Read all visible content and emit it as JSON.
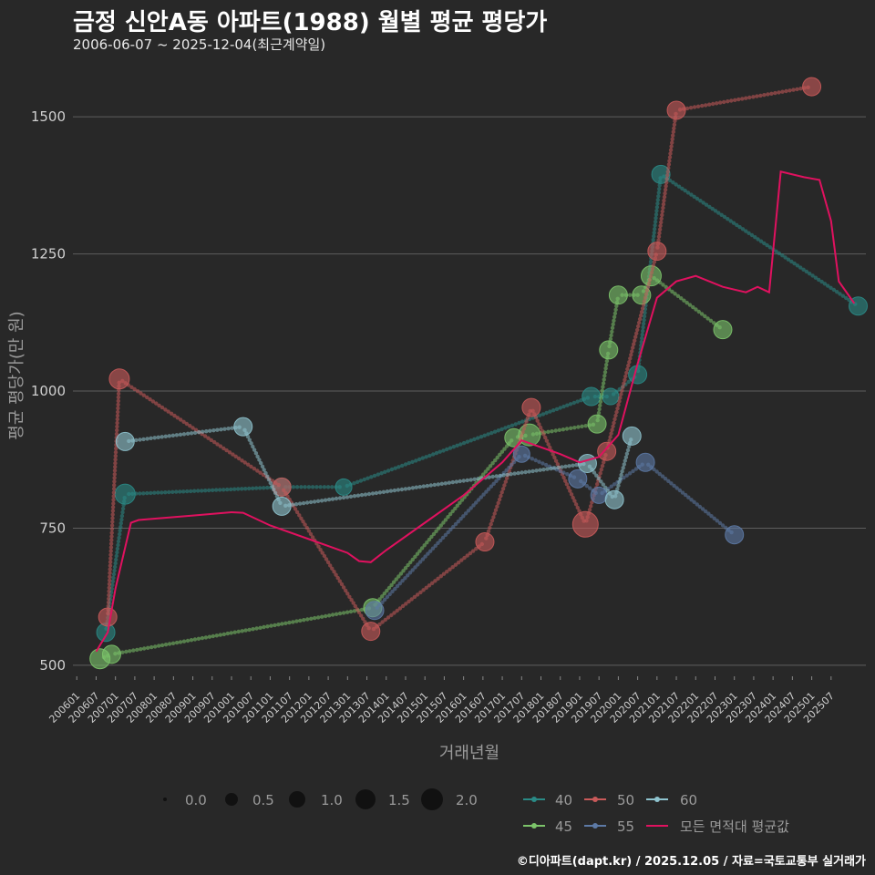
{
  "header": {
    "title": "금정 신안A동 아파트(1988) 월별 평균 평당가",
    "subtitle": "2006-06-07 ~ 2025-12-04(최근계약일)"
  },
  "footer": {
    "credit": "©디아파트(dapt.kr) / 2025.12.05 / 자료=국토교통부 실거래가"
  },
  "colors": {
    "background": "#282828",
    "grid": "#5e5e5e",
    "s40": "#2a8a86",
    "s45": "#7cc46a",
    "s50": "#c95a5a",
    "s55": "#5d7aa6",
    "s60": "#8fc4cf",
    "avg": "#e0115f"
  },
  "chart_data": {
    "type": "line",
    "title": "금정 신안A동 아파트(1988) 월별 평균 평당가",
    "xlabel": "거래년월",
    "ylabel": "평균 평당가(만 원)",
    "ylim": [
      450,
      1600
    ],
    "yticks": [
      500,
      750,
      1000,
      1250,
      1500
    ],
    "xlim": [
      2005.9,
      2026.4
    ],
    "xtick_labels": [
      "200601",
      "200607",
      "200701",
      "200707",
      "200801",
      "200807",
      "200901",
      "200907",
      "201001",
      "201007",
      "201101",
      "201107",
      "201201",
      "201207",
      "201301",
      "201307",
      "201401",
      "201407",
      "201501",
      "201507",
      "201601",
      "201607",
      "201701",
      "201707",
      "201801",
      "201807",
      "201901",
      "201907",
      "202001",
      "202007",
      "202101",
      "202107",
      "202201",
      "202207",
      "202301",
      "202307",
      "202401",
      "202407",
      "202501",
      "202507"
    ],
    "size_legend": {
      "title": "",
      "labels": [
        "0.0",
        "0.5",
        "1.0",
        "1.5",
        "2.0"
      ]
    },
    "series": [
      {
        "name": "40",
        "color_key": "s40",
        "points": [
          [
            2006.75,
            560,
            0.6
          ],
          [
            2007.25,
            812,
            0.7
          ],
          [
            2011.3,
            825,
            0.6
          ],
          [
            2012.9,
            825,
            0.5
          ],
          [
            2019.3,
            990,
            0.6
          ],
          [
            2019.8,
            990,
            0.5
          ],
          [
            2020.5,
            1030,
            0.6
          ],
          [
            2021.1,
            1395,
            0.6
          ],
          [
            2026.2,
            1155,
            0.6
          ]
        ]
      },
      {
        "name": "45",
        "color_key": "s45",
        "points": [
          [
            2006.6,
            512,
            0.7
          ],
          [
            2006.9,
            520,
            0.6
          ],
          [
            2013.65,
            605,
            0.6
          ],
          [
            2017.3,
            915,
            0.6
          ],
          [
            2017.7,
            920,
            0.8
          ],
          [
            2019.45,
            940,
            0.6
          ],
          [
            2019.75,
            1075,
            0.6
          ],
          [
            2020.0,
            1175,
            0.6
          ],
          [
            2020.6,
            1175,
            0.6
          ],
          [
            2020.85,
            1210,
            0.7
          ],
          [
            2022.7,
            1112,
            0.6
          ]
        ]
      },
      {
        "name": "50",
        "color_key": "s50",
        "points": [
          [
            2006.8,
            588,
            0.6
          ],
          [
            2007.1,
            1022,
            0.7
          ],
          [
            2011.3,
            825,
            0.6
          ],
          [
            2013.6,
            562,
            0.6
          ],
          [
            2016.55,
            725,
            0.6
          ],
          [
            2017.75,
            970,
            0.6
          ],
          [
            2019.15,
            757,
            1.0
          ],
          [
            2019.7,
            890,
            0.6
          ],
          [
            2021.0,
            1255,
            0.6
          ],
          [
            2021.5,
            1512,
            0.6
          ],
          [
            2025.0,
            1555,
            0.6
          ]
        ]
      },
      {
        "name": "55",
        "color_key": "s55",
        "points": [
          [
            2013.7,
            600,
            0.6
          ],
          [
            2017.5,
            885,
            0.5
          ],
          [
            2018.95,
            840,
            0.6
          ],
          [
            2019.5,
            810,
            0.5
          ],
          [
            2020.7,
            870,
            0.6
          ],
          [
            2023.0,
            738,
            0.6
          ]
        ]
      },
      {
        "name": "60",
        "color_key": "s60",
        "points": [
          [
            2007.25,
            908,
            0.6
          ],
          [
            2010.3,
            935,
            0.6
          ],
          [
            2011.3,
            790,
            0.6
          ],
          [
            2019.2,
            868,
            0.6
          ],
          [
            2019.9,
            802,
            0.6
          ],
          [
            2020.35,
            918,
            0.6
          ]
        ]
      },
      {
        "name": "모든 면적대 평균값",
        "color_key": "avg",
        "points": [
          [
            2006.5,
            525
          ],
          [
            2006.8,
            560
          ],
          [
            2007.0,
            640
          ],
          [
            2007.4,
            760
          ],
          [
            2007.6,
            765
          ],
          [
            2009.0,
            773
          ],
          [
            2010.0,
            779
          ],
          [
            2010.3,
            778
          ],
          [
            2011.0,
            755
          ],
          [
            2012.0,
            730
          ],
          [
            2013.0,
            705
          ],
          [
            2013.3,
            690
          ],
          [
            2013.6,
            688
          ],
          [
            2014.0,
            710
          ],
          [
            2015.0,
            760
          ],
          [
            2016.0,
            810
          ],
          [
            2017.0,
            870
          ],
          [
            2017.5,
            910
          ],
          [
            2018.5,
            885
          ],
          [
            2019.0,
            870
          ],
          [
            2019.5,
            880
          ],
          [
            2020.0,
            920
          ],
          [
            2020.5,
            1050
          ],
          [
            2021.0,
            1170
          ],
          [
            2021.5,
            1200
          ],
          [
            2022.0,
            1210
          ],
          [
            2022.7,
            1190
          ],
          [
            2023.3,
            1180
          ],
          [
            2023.6,
            1190
          ],
          [
            2023.9,
            1180
          ],
          [
            2024.2,
            1400
          ],
          [
            2024.8,
            1390
          ],
          [
            2025.2,
            1385
          ],
          [
            2025.5,
            1310
          ],
          [
            2025.7,
            1200
          ],
          [
            2026.1,
            1160
          ]
        ]
      }
    ]
  }
}
